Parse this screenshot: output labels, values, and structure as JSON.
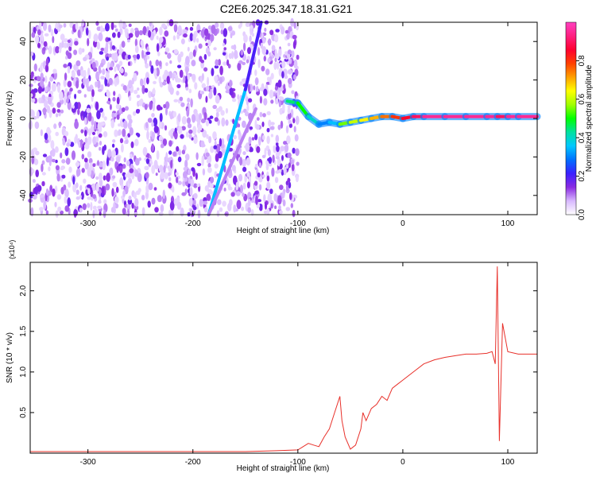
{
  "title": "C2E6.2025.347.18.31.G21",
  "chart_data": [
    {
      "type": "heatmap",
      "xlabel": "Height of straight line (km)",
      "ylabel": "Frequency (Hz)",
      "xlim": [
        -355,
        128
      ],
      "ylim": [
        -50,
        50
      ],
      "xticks": [
        -300,
        -200,
        -100,
        0,
        100
      ],
      "yticks": [
        -40,
        -20,
        0,
        20,
        40
      ],
      "colorbar": {
        "label": "Normalized spectral amplitude",
        "range": [
          0,
          1
        ],
        "ticks": [
          "0.0",
          "0.2",
          "0.4",
          "0.6",
          "0.8"
        ],
        "colors": [
          "#ffffff",
          "#d8b8ff",
          "#8a2be2",
          "#3a1fff",
          "#0070ff",
          "#00c8ff",
          "#00e0a0",
          "#00ff00",
          "#a0ff00",
          "#ffff00",
          "#ffa000",
          "#ff4000",
          "#ff0030",
          "#ff2080",
          "#ff40c0"
        ]
      },
      "signal_trace": {
        "x": [
          -110,
          -100,
          -90,
          -80,
          -70,
          -60,
          -50,
          -40,
          -30,
          -20,
          -10,
          0,
          10,
          20,
          40,
          60,
          80,
          90,
          100,
          110,
          128
        ],
        "y": [
          9,
          8,
          1,
          -3,
          -2,
          -3,
          -2,
          -1,
          0,
          1,
          1,
          0,
          1,
          1,
          1,
          1,
          1,
          1,
          1,
          1,
          1
        ],
        "amp": [
          0.45,
          0.5,
          0.4,
          0.3,
          0.35,
          0.55,
          0.6,
          0.65,
          0.7,
          0.75,
          0.8,
          0.85,
          0.9,
          0.95,
          0.95,
          0.95,
          0.95,
          0.9,
          0.95,
          0.95,
          0.95
        ]
      },
      "slant_lines": [
        {
          "x": [
            -185,
            -150
          ],
          "y": [
            -50,
            15
          ],
          "amp": 0.35
        },
        {
          "x": [
            -150,
            -135
          ],
          "y": [
            15,
            50
          ],
          "amp": 0.2
        },
        {
          "x": [
            -185,
            -140
          ],
          "y": [
            -50,
            5
          ],
          "amp": 0.1
        }
      ]
    },
    {
      "type": "line",
      "xlabel": "Height of straight line (km)",
      "ylabel": "SNR (10 * v/v)",
      "y_multiplier": "(x10⁴)",
      "xlim": [
        -355,
        128
      ],
      "ylim": [
        0,
        2.35
      ],
      "xticks": [
        -300,
        -200,
        -100,
        0,
        100
      ],
      "yticks": [
        0.5,
        1.0,
        1.5,
        2.0
      ],
      "series": [
        {
          "color": "#e8302a",
          "x": [
            -355,
            -300,
            -250,
            -200,
            -150,
            -120,
            -100,
            -95,
            -90,
            -85,
            -80,
            -75,
            -70,
            -65,
            -60,
            -58,
            -55,
            -50,
            -45,
            -40,
            -38,
            -35,
            -30,
            -25,
            -20,
            -15,
            -10,
            -5,
            0,
            10,
            20,
            30,
            40,
            50,
            60,
            70,
            80,
            85,
            88,
            90,
            92,
            95,
            100,
            110,
            120,
            128
          ],
          "y": [
            0.02,
            0.02,
            0.02,
            0.02,
            0.02,
            0.03,
            0.04,
            0.08,
            0.12,
            0.1,
            0.08,
            0.2,
            0.3,
            0.5,
            0.7,
            0.4,
            0.2,
            0.05,
            0.1,
            0.3,
            0.5,
            0.4,
            0.55,
            0.6,
            0.7,
            0.65,
            0.8,
            0.85,
            0.9,
            1.0,
            1.1,
            1.15,
            1.18,
            1.2,
            1.22,
            1.22,
            1.23,
            1.25,
            1.1,
            2.3,
            0.15,
            1.6,
            1.25,
            1.22,
            1.22,
            1.22
          ]
        }
      ]
    }
  ]
}
